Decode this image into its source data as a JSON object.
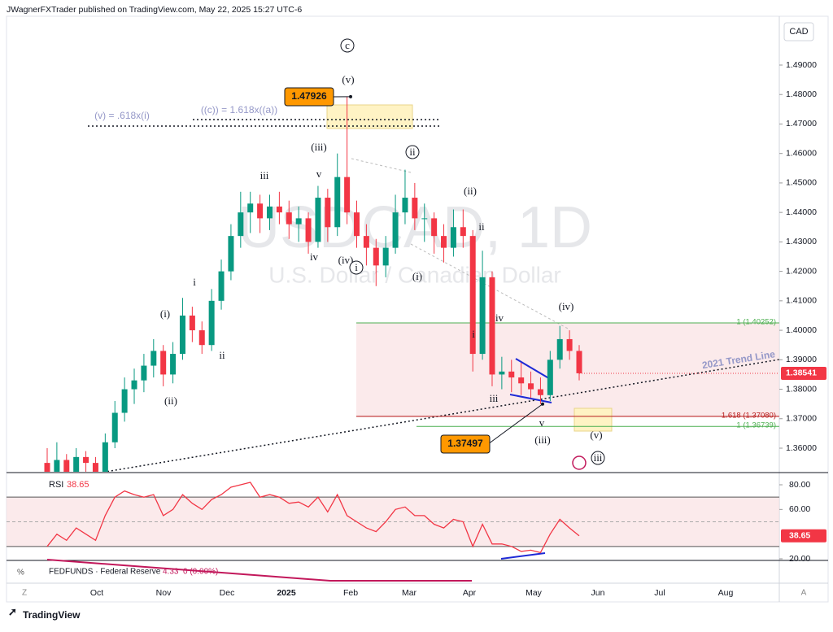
{
  "header": {
    "publisher": "JWagnerFXTrader published on TradingView.com, May 22, 2025 15:27 UTC-6",
    "currency": "CAD"
  },
  "watermark": {
    "symbol": "USDCAD, 1D",
    "description": "U.S. Dollar / Canadian Dollar"
  },
  "price_axis": {
    "ylim": [
      1.35,
      1.5
    ],
    "ticks": [
      {
        "value": 1.49,
        "label": "1.49000"
      },
      {
        "value": 1.48,
        "label": "1.48000"
      },
      {
        "value": 1.47,
        "label": "1.47000"
      },
      {
        "value": 1.46,
        "label": "1.46000"
      },
      {
        "value": 1.45,
        "label": "1.45000"
      },
      {
        "value": 1.44,
        "label": "1.44000"
      },
      {
        "value": 1.43,
        "label": "1.43000"
      },
      {
        "value": 1.42,
        "label": "1.42000"
      },
      {
        "value": 1.41,
        "label": "1.41000"
      },
      {
        "value": 1.4,
        "label": "1.40000"
      },
      {
        "value": 1.39,
        "label": "1.39000"
      },
      {
        "value": 1.38,
        "label": "1.38000"
      },
      {
        "value": 1.37,
        "label": "1.37000"
      },
      {
        "value": 1.36,
        "label": "1.36000"
      }
    ],
    "last_price": {
      "value": 1.38541,
      "label": "1.38541"
    }
  },
  "candles": [
    [
      1.355,
      1.36,
      1.348,
      1.352
    ],
    [
      1.352,
      1.362,
      1.349,
      1.356
    ],
    [
      1.356,
      1.358,
      1.345,
      1.35
    ],
    [
      1.35,
      1.36,
      1.347,
      1.357
    ],
    [
      1.357,
      1.359,
      1.35,
      1.355
    ],
    [
      1.355,
      1.357,
      1.346,
      1.352
    ],
    [
      1.352,
      1.365,
      1.35,
      1.362
    ],
    [
      1.362,
      1.376,
      1.36,
      1.372
    ],
    [
      1.372,
      1.384,
      1.369,
      1.38
    ],
    [
      1.38,
      1.387,
      1.375,
      1.383
    ],
    [
      1.383,
      1.392,
      1.379,
      1.388
    ],
    [
      1.388,
      1.397,
      1.384,
      1.393
    ],
    [
      1.393,
      1.395,
      1.381,
      1.385
    ],
    [
      1.385,
      1.396,
      1.382,
      1.392
    ],
    [
      1.392,
      1.411,
      1.39,
      1.405
    ],
    [
      1.405,
      1.408,
      1.396,
      1.4
    ],
    [
      1.4,
      1.403,
      1.392,
      1.395
    ],
    [
      1.395,
      1.414,
      1.393,
      1.41
    ],
    [
      1.41,
      1.424,
      1.407,
      1.42
    ],
    [
      1.42,
      1.436,
      1.417,
      1.432
    ],
    [
      1.432,
      1.447,
      1.428,
      1.44
    ],
    [
      1.44,
      1.447,
      1.433,
      1.443
    ],
    [
      1.443,
      1.446,
      1.433,
      1.438
    ],
    [
      1.438,
      1.446,
      1.434,
      1.442
    ],
    [
      1.442,
      1.447,
      1.436,
      1.44
    ],
    [
      1.44,
      1.444,
      1.431,
      1.436
    ],
    [
      1.436,
      1.442,
      1.43,
      1.438
    ],
    [
      1.438,
      1.44,
      1.426,
      1.43
    ],
    [
      1.43,
      1.449,
      1.428,
      1.445
    ],
    [
      1.445,
      1.448,
      1.43,
      1.435
    ],
    [
      1.435,
      1.46,
      1.432,
      1.452
    ],
    [
      1.452,
      1.47926,
      1.436,
      1.44
    ],
    [
      1.44,
      1.444,
      1.428,
      1.432
    ],
    [
      1.432,
      1.436,
      1.422,
      1.428
    ],
    [
      1.428,
      1.431,
      1.415,
      1.422
    ],
    [
      1.422,
      1.432,
      1.418,
      1.428
    ],
    [
      1.428,
      1.446,
      1.426,
      1.44
    ],
    [
      1.44,
      1.4545,
      1.436,
      1.445
    ],
    [
      1.445,
      1.45,
      1.434,
      1.438
    ],
    [
      1.438,
      1.443,
      1.43,
      1.438
    ],
    [
      1.438,
      1.44,
      1.426,
      1.432
    ],
    [
      1.432,
      1.436,
      1.423,
      1.428
    ],
    [
      1.428,
      1.441,
      1.425,
      1.435
    ],
    [
      1.435,
      1.441,
      1.428,
      1.432
    ],
    [
      1.432,
      1.434,
      1.386,
      1.392
    ],
    [
      1.392,
      1.427,
      1.39,
      1.418
    ],
    [
      1.418,
      1.42,
      1.381,
      1.385
    ],
    [
      1.385,
      1.391,
      1.38,
      1.386
    ],
    [
      1.386,
      1.39,
      1.379,
      1.384
    ],
    [
      1.384,
      1.389,
      1.378,
      1.382
    ],
    [
      1.382,
      1.386,
      1.377,
      1.38
    ],
    [
      1.38,
      1.384,
      1.37497,
      1.378
    ],
    [
      1.378,
      1.393,
      1.376,
      1.39
    ],
    [
      1.39,
      1.4015,
      1.387,
      1.397
    ],
    [
      1.397,
      1.4,
      1.39,
      1.393
    ],
    [
      1.393,
      1.395,
      1.383,
      1.38541
    ]
  ],
  "price_labels": [
    {
      "value": 1.47926,
      "label": "1.47926"
    },
    {
      "value": 1.37497,
      "label": "1.37497"
    }
  ],
  "fib_levels": [
    {
      "value": 1.40252,
      "label": "1 (1.40252)",
      "color": "#4caf50"
    },
    {
      "value": 1.3708,
      "label": "1.618 (1.37080)",
      "color": "#b71c1c"
    },
    {
      "value": 1.36739,
      "label": "1 (1.36739)",
      "color": "#4caf50"
    }
  ],
  "annotations": [
    "c",
    "(v)",
    "((c)) = 1.618x((a))",
    "(v) = .618x(i)",
    "(iii)",
    "ii",
    "iii",
    "v",
    "(ii)",
    "ii",
    "iv",
    "(iv)",
    "i",
    "(i)",
    "i",
    "(i)",
    "ii",
    "(ii)",
    "(iv)",
    "iv",
    "i",
    "iii",
    "v",
    "(iii)",
    "(v)",
    "iii",
    "2021 Trend Line"
  ],
  "time_axis": [
    "Oct",
    "Nov",
    "Dec",
    "2025",
    "Feb",
    "Mar",
    "Apr",
    "May",
    "Jun",
    "Jul",
    "Aug"
  ],
  "rsi": {
    "name": "RSI",
    "value": 38.65,
    "value_label": "38.65",
    "ylim": [
      10,
      90
    ],
    "ticks": [
      {
        "value": 80,
        "label": "80.00"
      },
      {
        "value": 60,
        "label": "60.00"
      },
      {
        "value": 20,
        "label": "20.00"
      }
    ],
    "values": [
      30,
      40,
      35,
      45,
      40,
      35,
      55,
      70,
      75,
      72,
      70,
      72,
      55,
      60,
      72,
      65,
      60,
      68,
      72,
      78,
      80,
      82,
      70,
      72,
      70,
      65,
      66,
      62,
      70,
      58,
      72,
      55,
      50,
      45,
      42,
      50,
      60,
      62,
      55,
      55,
      48,
      45,
      52,
      50,
      30,
      48,
      32,
      32,
      30,
      26,
      27,
      25,
      40,
      52,
      45,
      38.65
    ]
  },
  "fedfunds": {
    "name": "FEDFUNDS · Federal Reserve",
    "value": "4.33",
    "change": "0 (0.00%)",
    "values": [
      5.33,
      5.08,
      4.83,
      4.58,
      4.33,
      4.33,
      4.33
    ]
  },
  "footer": {
    "brand": "TradingView"
  }
}
